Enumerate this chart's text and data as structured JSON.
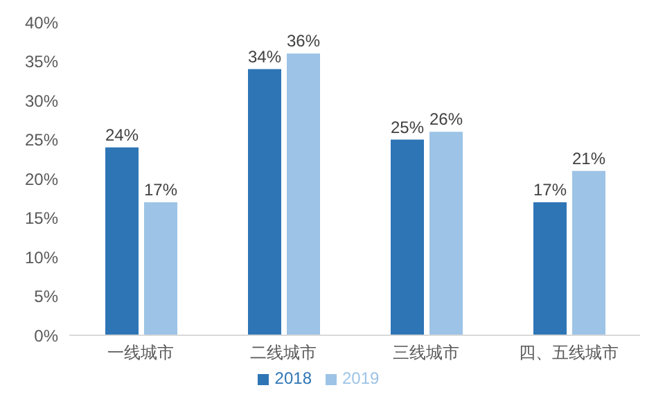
{
  "chart_data": {
    "type": "bar",
    "categories": [
      "一线城市",
      "二线城市",
      "三线城市",
      "四、五线城市"
    ],
    "series": [
      {
        "name": "2018",
        "color": "#2e75b6",
        "values": [
          24,
          34,
          25,
          17
        ],
        "value_labels": [
          "24%",
          "34%",
          "25%",
          "17%"
        ]
      },
      {
        "name": "2019",
        "color": "#9dc3e6",
        "values": [
          17,
          36,
          26,
          21
        ],
        "value_labels": [
          "17%",
          "36%",
          "26%",
          "21%"
        ]
      }
    ],
    "ylim": [
      0,
      40
    ],
    "yticks": [
      {
        "value": 0,
        "label": "0%"
      },
      {
        "value": 5,
        "label": "5%"
      },
      {
        "value": 10,
        "label": "10%"
      },
      {
        "value": 15,
        "label": "15%"
      },
      {
        "value": 20,
        "label": "20%"
      },
      {
        "value": 25,
        "label": "25%"
      },
      {
        "value": 30,
        "label": "30%"
      },
      {
        "value": 35,
        "label": "35%"
      },
      {
        "value": 40,
        "label": "40%"
      }
    ],
    "grid": false,
    "legend": "bottom"
  }
}
